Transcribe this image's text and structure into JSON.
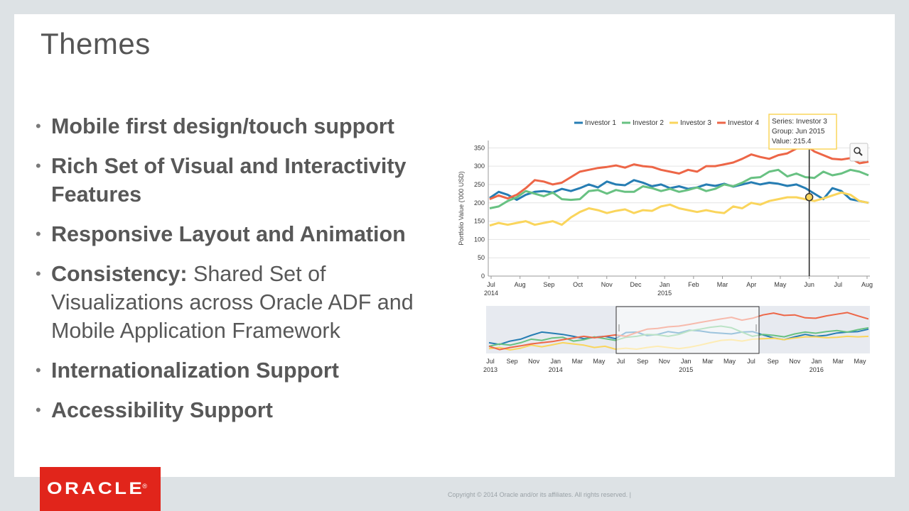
{
  "slide": {
    "title": "Themes",
    "bullets": [
      {
        "bold": "Mobile first design/touch support",
        "rest": ""
      },
      {
        "bold": "Rich Set of Visual and Interactivity Features",
        "rest": ""
      },
      {
        "bold": "Responsive Layout and Animation",
        "rest": ""
      },
      {
        "bold": "Consistency:",
        "rest": " Shared Set of Visualizations across Oracle ADF and Mobile Application Framework"
      },
      {
        "bold": "Internationalization Support",
        "rest": ""
      },
      {
        "bold": "Accessibility Support",
        "rest": ""
      }
    ],
    "logo_text": "ORACLE",
    "logo_mark": "®",
    "copyright": "Copyright © 2014 Oracle and/or its affiliates. All rights reserved.  |"
  },
  "colors": {
    "logo_red": "#e1251b",
    "investor1": "#267db3",
    "investor2": "#68c182",
    "investor3": "#fad55c",
    "investor4": "#ed6647"
  },
  "chart_data": [
    {
      "type": "line",
      "ylabel": "Portfolio Value ('000 USD)",
      "ylim": [
        0,
        370
      ],
      "yticks": [
        0,
        50,
        100,
        150,
        200,
        250,
        300,
        350
      ],
      "xlim": [
        "Jul 2014",
        "Aug 2015"
      ],
      "xtick_labels": [
        "Jul",
        "Aug",
        "Sep",
        "Oct",
        "Nov",
        "Dec",
        "Jan",
        "Feb",
        "Mar",
        "Apr",
        "May",
        "Jun",
        "Jul",
        "Aug"
      ],
      "xtick_year_labels": [
        {
          "under": "Jul",
          "text": "2014"
        },
        {
          "under": "Jan",
          "text": "2015"
        }
      ],
      "legend": "top",
      "grid": true,
      "tooltip": {
        "series": "Series: Investor 3",
        "group": "Group: Jun 2015",
        "value": "Value: 215.4"
      },
      "series": [
        {
          "name": "Investor 1",
          "color": "#267db3",
          "values": [
            213,
            230,
            222,
            208,
            222,
            230,
            232,
            228,
            238,
            232,
            240,
            250,
            242,
            258,
            250,
            248,
            262,
            255,
            245,
            250,
            240,
            245,
            238,
            242,
            250,
            246,
            252,
            244,
            250,
            256,
            250,
            255,
            252,
            246,
            250,
            240,
            225,
            210,
            240,
            232,
            210,
            205,
            200
          ]
        },
        {
          "name": "Investor 2",
          "color": "#68c182",
          "values": [
            185,
            190,
            205,
            215,
            232,
            225,
            218,
            228,
            210,
            208,
            210,
            232,
            235,
            225,
            235,
            230,
            230,
            245,
            240,
            232,
            238,
            230,
            235,
            242,
            232,
            238,
            250,
            245,
            255,
            268,
            270,
            285,
            290,
            272,
            280,
            270,
            268,
            285,
            275,
            280,
            290,
            285,
            275
          ]
        },
        {
          "name": "Investor 3",
          "color": "#fad55c",
          "values": [
            138,
            145,
            140,
            145,
            150,
            140,
            145,
            150,
            140,
            160,
            175,
            185,
            180,
            172,
            178,
            182,
            172,
            180,
            178,
            190,
            195,
            185,
            180,
            175,
            180,
            175,
            172,
            190,
            185,
            200,
            195,
            205,
            210,
            215,
            215,
            210,
            205,
            212,
            220,
            228,
            222,
            205,
            200
          ]
        },
        {
          "name": "Investor 4",
          "color": "#ed6647",
          "values": [
            210,
            220,
            212,
            222,
            240,
            262,
            258,
            250,
            255,
            270,
            285,
            290,
            295,
            298,
            302,
            296,
            305,
            300,
            298,
            290,
            285,
            280,
            290,
            285,
            300,
            300,
            305,
            310,
            320,
            332,
            325,
            320,
            330,
            335,
            348,
            358,
            340,
            330,
            320,
            318,
            322,
            308,
            312
          ]
        }
      ]
    },
    {
      "type": "line",
      "xlim": [
        "Jul 2013",
        "Jun 2016"
      ],
      "xtick_labels": [
        "Jul",
        "Sep",
        "Nov",
        "Jan",
        "Mar",
        "May",
        "Jul",
        "Sep",
        "Nov",
        "Jan",
        "Mar",
        "May",
        "Jul",
        "Sep",
        "Nov",
        "Jan",
        "Mar",
        "May"
      ],
      "xtick_year_labels": [
        {
          "under": "Jul",
          "text": "2013"
        },
        {
          "under": "Jan",
          "text": "2014"
        },
        {
          "under": "Jan",
          "text": "2015"
        },
        {
          "under": "Jan",
          "text": "2016"
        }
      ],
      "selection_range": [
        "Jul 2014",
        "Aug 2015"
      ],
      "series": [
        {
          "name": "Investor 1",
          "color": "#267db3",
          "values": [
            205,
            198,
            212,
            220,
            236,
            250,
            245,
            240,
            232,
            222,
            228,
            232,
            222,
            248,
            250,
            235,
            240,
            252,
            246,
            258,
            255,
            248,
            245,
            242,
            250,
            252,
            238,
            225,
            218,
            230,
            240,
            232,
            236,
            246,
            250,
            252,
            262
          ]
        },
        {
          "name": "Investor 2",
          "color": "#68c182",
          "values": [
            190,
            200,
            195,
            205,
            220,
            215,
            225,
            228,
            212,
            218,
            230,
            222,
            215,
            228,
            232,
            240,
            238,
            232,
            240,
            255,
            262,
            270,
            275,
            268,
            250,
            232,
            240,
            236,
            230,
            242,
            250,
            245,
            252,
            256,
            250,
            260,
            268
          ]
        },
        {
          "name": "Investor 3",
          "color": "#fad55c",
          "values": [
            180,
            185,
            175,
            182,
            195,
            188,
            196,
            205,
            200,
            195,
            185,
            190,
            178,
            182,
            178,
            185,
            190,
            185,
            180,
            186,
            195,
            205,
            215,
            218,
            212,
            220,
            222,
            224,
            218,
            225,
            230,
            230,
            226,
            228,
            232,
            230,
            232
          ]
        },
        {
          "name": "Investor 4",
          "color": "#ed6647",
          "values": [
            190,
            176,
            185,
            192,
            200,
            205,
            210,
            218,
            225,
            232,
            226,
            232,
            238,
            232,
            248,
            262,
            265,
            272,
            275,
            282,
            290,
            298,
            305,
            312,
            300,
            308,
            322,
            330,
            320,
            322,
            310,
            308,
            318,
            325,
            332,
            318,
            305
          ]
        }
      ]
    }
  ]
}
